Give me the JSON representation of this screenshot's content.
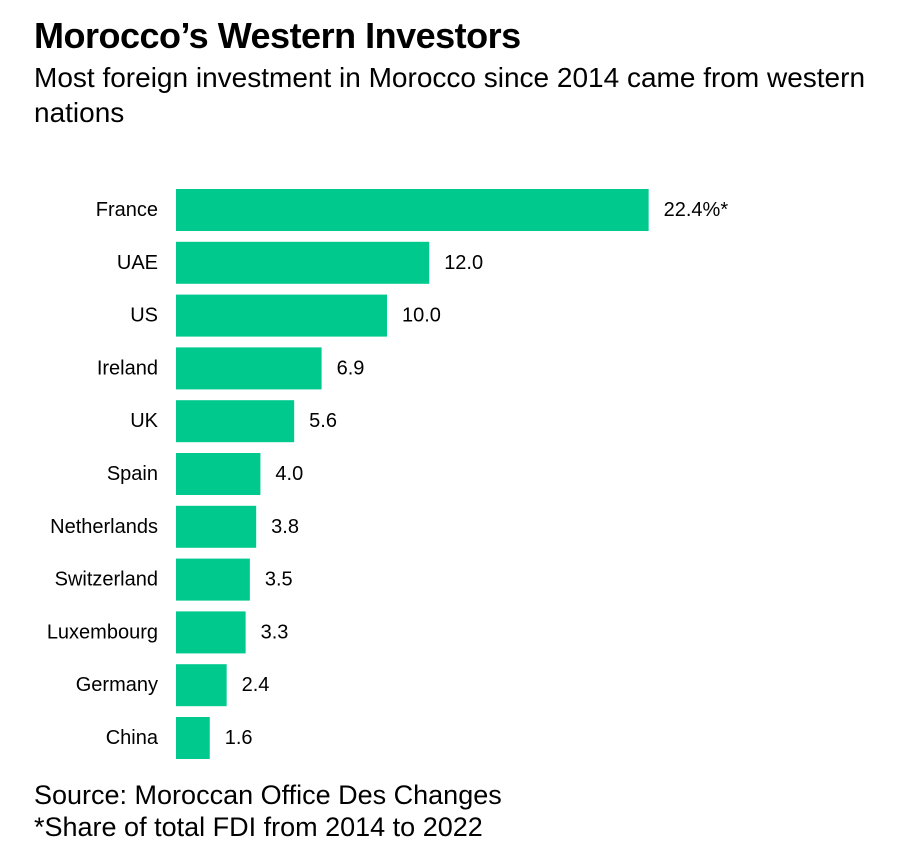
{
  "title": "Morocco’s Western Investors",
  "subtitle": "Most foreign investment in Morocco since 2014 came from western nations",
  "colors": {
    "bar": "#00c98d",
    "text": "#000000",
    "background": "#ffffff"
  },
  "chart_data": {
    "type": "bar",
    "orientation": "horizontal",
    "categories": [
      "France",
      "UAE",
      "US",
      "Ireland",
      "UK",
      "Spain",
      "Netherlands",
      "Switzerland",
      "Luxembourg",
      "Germany",
      "China"
    ],
    "values": [
      22.4,
      12.0,
      10.0,
      6.9,
      5.6,
      4.0,
      3.8,
      3.5,
      3.3,
      2.4,
      1.6
    ],
    "value_labels": [
      "22.4%*",
      "12.0",
      "10.0",
      "6.9",
      "5.6",
      "4.0",
      "3.8",
      "3.5",
      "3.3",
      "2.4",
      "1.6"
    ],
    "grid": false,
    "legend": "none"
  },
  "footer": {
    "source": "Source: Moroccan Office Des Changes",
    "note": "*Share of total FDI from 2014 to 2022"
  }
}
